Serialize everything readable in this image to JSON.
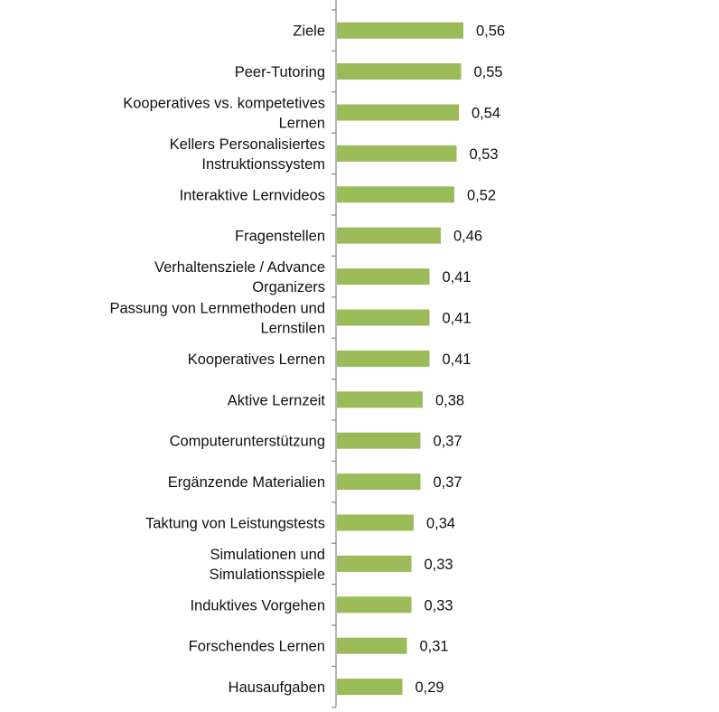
{
  "chart_data": {
    "type": "bar",
    "orientation": "horizontal",
    "categories": [
      [
        "Ziele"
      ],
      [
        "Peer-Tutoring"
      ],
      [
        "Kooperatives vs. kompetetives",
        "Lernen"
      ],
      [
        "Kellers Personalisiertes",
        "Instruktionssystem"
      ],
      [
        "Interaktive Lernvideos"
      ],
      [
        "Fragenstellen"
      ],
      [
        "Verhaltensziele / Advance",
        "Organizers"
      ],
      [
        "Passung von Lernmethoden und",
        "Lernstilen"
      ],
      [
        "Kooperatives Lernen"
      ],
      [
        "Aktive Lernzeit"
      ],
      [
        "Computerunterstützung"
      ],
      [
        "Ergänzende Materialien"
      ],
      [
        "Taktung von Leistungstests"
      ],
      [
        "Simulationen und",
        "Simulationsspiele"
      ],
      [
        "Induktives Vorgehen"
      ],
      [
        "Forschendes Lernen"
      ],
      [
        "Hausaufgaben"
      ]
    ],
    "values": [
      0.56,
      0.55,
      0.54,
      0.53,
      0.52,
      0.46,
      0.41,
      0.41,
      0.41,
      0.38,
      0.37,
      0.37,
      0.34,
      0.33,
      0.33,
      0.31,
      0.29
    ],
    "value_labels": [
      "0,56",
      "0,55",
      "0,54",
      "0,53",
      "0,52",
      "0,46",
      "0,41",
      "0,41",
      "0,41",
      "0,38",
      "0,37",
      "0,37",
      "0,34",
      "0,33",
      "0,33",
      "0,31",
      "0,29"
    ],
    "bar_color": "#9bbb59",
    "axis_color": "#868686",
    "title": "",
    "xlabel": "",
    "ylabel": "",
    "grid": false,
    "legend": "none"
  }
}
